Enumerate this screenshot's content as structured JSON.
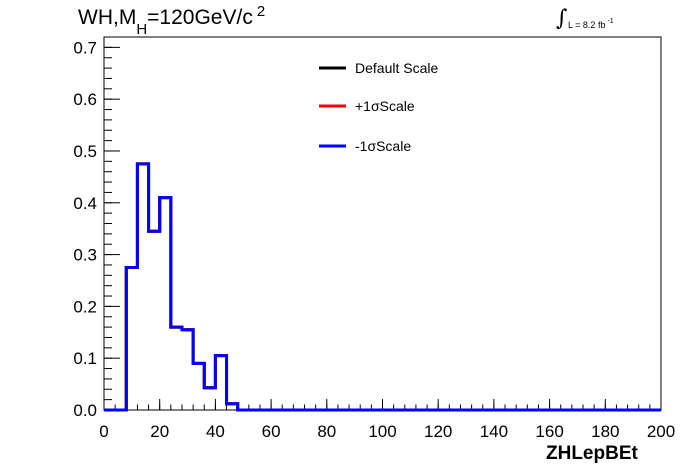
{
  "title": {
    "prefix": "WH,M",
    "subscript": "H",
    "middle": "=120GeV/c",
    "superscript": "2"
  },
  "luminosity": {
    "integral_symbol": "∫",
    "text": "L = 8.2 fb",
    "superscript": "-1"
  },
  "chart_data": {
    "type": "line",
    "xlabel": "ZHLepBEt",
    "ylabel": "",
    "xlim": [
      0,
      200
    ],
    "ylim": [
      0,
      0.72
    ],
    "x_ticks": [
      "0",
      "20",
      "40",
      "60",
      "80",
      "100",
      "120",
      "140",
      "160",
      "180",
      "200"
    ],
    "y_ticks": [
      "0.0",
      "0.1",
      "0.2",
      "0.3",
      "0.4",
      "0.5",
      "0.6",
      "0.7"
    ],
    "grid": false,
    "legend_position": "top-center",
    "bin_edges": [
      0,
      4,
      8,
      12,
      16,
      20,
      24,
      28,
      32,
      36,
      40,
      44,
      48,
      52,
      56,
      60,
      64,
      68,
      72,
      76,
      80,
      84,
      88,
      92,
      96,
      100,
      104,
      108,
      112,
      116,
      120,
      124,
      128,
      132,
      136,
      140,
      144,
      148,
      152,
      156,
      160,
      164,
      168,
      172,
      176,
      180,
      184,
      188,
      192,
      196,
      200
    ],
    "series": [
      {
        "name": "Default Scale",
        "color": "#000000",
        "values": [
          0,
          0,
          0.275,
          0.475,
          0.345,
          0.41,
          0.16,
          0.155,
          0.09,
          0.043,
          0.105,
          0.012,
          0,
          0,
          0,
          0,
          0,
          0,
          0,
          0,
          0,
          0,
          0,
          0,
          0,
          0,
          0,
          0,
          0,
          0,
          0,
          0,
          0,
          0,
          0,
          0,
          0,
          0,
          0,
          0,
          0,
          0,
          0,
          0,
          0,
          0,
          0,
          0,
          0,
          0
        ]
      },
      {
        "name": "+1σScale",
        "color": "#ff0000",
        "values": [
          0,
          0,
          0.275,
          0.475,
          0.345,
          0.41,
          0.16,
          0.155,
          0.09,
          0.043,
          0.105,
          0.012,
          0,
          0,
          0,
          0,
          0,
          0,
          0,
          0,
          0,
          0,
          0,
          0,
          0,
          0,
          0,
          0,
          0,
          0,
          0,
          0,
          0,
          0,
          0,
          0,
          0,
          0,
          0,
          0,
          0,
          0,
          0,
          0,
          0,
          0,
          0,
          0,
          0,
          0
        ]
      },
      {
        "name": "-1σScale",
        "color": "#0000ff",
        "values": [
          0,
          0,
          0.275,
          0.475,
          0.345,
          0.41,
          0.16,
          0.155,
          0.09,
          0.043,
          0.105,
          0.012,
          0,
          0,
          0,
          0,
          0,
          0,
          0,
          0,
          0,
          0,
          0,
          0,
          0,
          0,
          0,
          0,
          0,
          0,
          0,
          0,
          0,
          0,
          0,
          0,
          0,
          0,
          0,
          0,
          0,
          0,
          0,
          0,
          0,
          0,
          0,
          0,
          0,
          0
        ]
      }
    ]
  }
}
